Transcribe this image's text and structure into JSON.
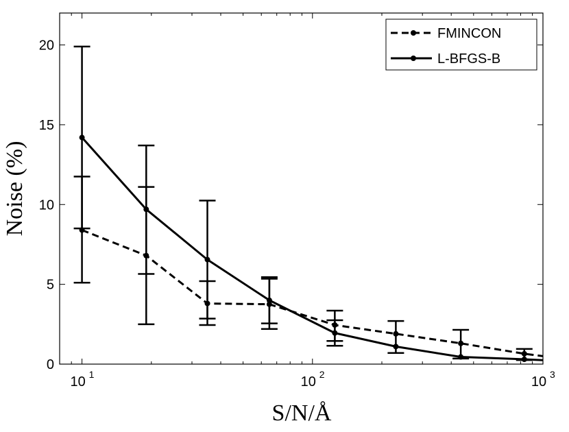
{
  "chart_data": {
    "type": "line",
    "title": "",
    "xlabel": "S/N/Å",
    "ylabel": "Noise (%)",
    "xscale": "log",
    "xlim": [
      8,
      1000
    ],
    "ylim": [
      0,
      22
    ],
    "x_ticks": [
      {
        "base": "10",
        "exp": "1",
        "value": 10
      },
      {
        "base": "10",
        "exp": "2",
        "value": 100
      },
      {
        "base": "10",
        "exp": "3",
        "value": 1000
      }
    ],
    "y_ticks": [
      0,
      5,
      10,
      15,
      20
    ],
    "legend_position": "top-right",
    "series": [
      {
        "name": "FMINCON",
        "style": "dashed",
        "x": [
          10,
          19,
          35,
          65,
          125,
          230,
          440,
          830,
          1000
        ],
        "values": [
          8.4,
          6.8,
          3.8,
          3.75,
          2.45,
          1.9,
          1.3,
          0.65,
          0.5
        ],
        "err_low": [
          5.1,
          5.65,
          2.85,
          2.55,
          1.45,
          null,
          null,
          null,
          null
        ],
        "err_high": [
          11.75,
          11.1,
          5.2,
          5.35,
          2.75,
          null,
          null,
          null,
          null
        ]
      },
      {
        "name": "L-BFGS-B",
        "style": "solid",
        "x": [
          10,
          19,
          35,
          65,
          125,
          230,
          440,
          830,
          1000
        ],
        "values": [
          14.2,
          9.7,
          6.55,
          4.0,
          1.95,
          1.1,
          0.45,
          0.3,
          0.25
        ],
        "err_low": [
          8.5,
          2.5,
          2.45,
          2.2,
          1.15,
          0.7,
          0.35,
          0.25,
          null
        ],
        "err_high": [
          19.9,
          13.7,
          10.25,
          5.45,
          3.35,
          2.7,
          2.15,
          0.95,
          null
        ]
      }
    ]
  }
}
